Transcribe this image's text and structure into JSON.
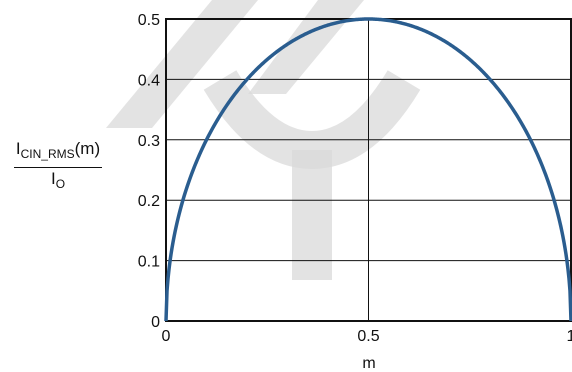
{
  "chart_data": {
    "type": "line",
    "xlabel": "m",
    "ylabel": {
      "numerator_main": "I",
      "numerator_sub": "CIN_RMS",
      "numerator_suffix": "(m)",
      "denominator_main": "I",
      "denominator_sub": "O"
    },
    "xlim": [
      0,
      1
    ],
    "ylim": [
      0,
      0.5
    ],
    "x_ticks": [
      0,
      0.5,
      1
    ],
    "x_tick_labels": [
      "0",
      "0.5",
      "1"
    ],
    "y_ticks": [
      0,
      0.1,
      0.2,
      0.3,
      0.4,
      0.5
    ],
    "y_tick_labels": [
      "0",
      "0.1",
      "0.2",
      "0.3",
      "0.4",
      "0.5"
    ],
    "grid": true,
    "series": [
      {
        "color": "#2a5d8f",
        "x": [
          0,
          0.02,
          0.05,
          0.1,
          0.15,
          0.2,
          0.25,
          0.3,
          0.35,
          0.4,
          0.45,
          0.5,
          0.55,
          0.6,
          0.65,
          0.7,
          0.75,
          0.8,
          0.85,
          0.9,
          0.95,
          0.98,
          1
        ],
        "y": [
          0,
          0.14,
          0.218,
          0.3,
          0.357,
          0.4,
          0.433,
          0.458,
          0.477,
          0.49,
          0.497,
          0.5,
          0.497,
          0.49,
          0.477,
          0.458,
          0.433,
          0.4,
          0.357,
          0.3,
          0.218,
          0.14,
          0
        ]
      }
    ],
    "watermark_color": "#d9d9d9"
  }
}
